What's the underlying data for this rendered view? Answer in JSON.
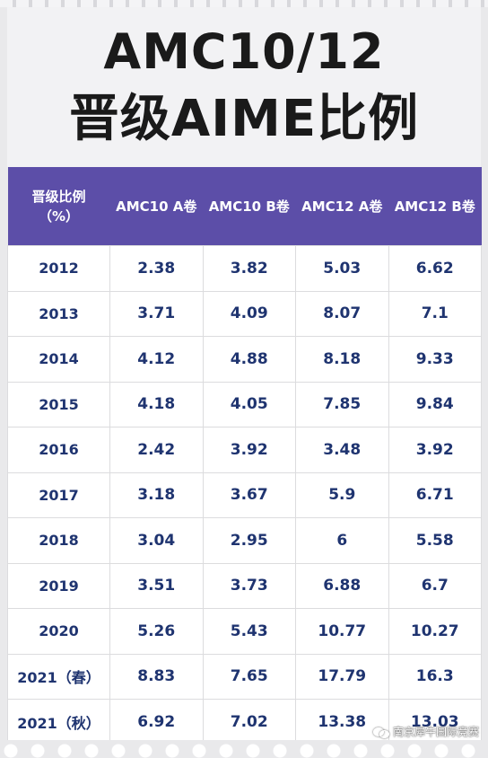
{
  "header": {
    "title_line1": "AMC10/12",
    "title_line2": "晋级AIME比例"
  },
  "chart_data": {
    "type": "table",
    "columns": [
      "晋级比例（%）",
      "AMC10 A卷",
      "AMC10 B卷",
      "AMC12 A卷",
      "AMC12 B卷"
    ],
    "rows": [
      [
        "2012",
        "2.38",
        "3.82",
        "5.03",
        "6.62"
      ],
      [
        "2013",
        "3.71",
        "4.09",
        "8.07",
        "7.1"
      ],
      [
        "2014",
        "4.12",
        "4.88",
        "8.18",
        "9.33"
      ],
      [
        "2015",
        "4.18",
        "4.05",
        "7.85",
        "9.84"
      ],
      [
        "2016",
        "2.42",
        "3.92",
        "3.48",
        "3.92"
      ],
      [
        "2017",
        "3.18",
        "3.67",
        "5.9",
        "6.71"
      ],
      [
        "2018",
        "3.04",
        "2.95",
        "6",
        "5.58"
      ],
      [
        "2019",
        "3.51",
        "3.73",
        "6.88",
        "6.7"
      ],
      [
        "2020",
        "5.26",
        "5.43",
        "10.77",
        "10.27"
      ],
      [
        "2021（春）",
        "8.83",
        "7.65",
        "17.79",
        "16.3"
      ],
      [
        "2021（秋）",
        "6.92",
        "7.02",
        "13.38",
        "13.03"
      ]
    ]
  },
  "colors": {
    "header_bg": "#5c4ea8",
    "cell_text": "#1f3470",
    "title_text": "#1a1a1a"
  },
  "watermark": {
    "text": "南京犀牛国际竞赛",
    "icon": "wechat-icon"
  }
}
